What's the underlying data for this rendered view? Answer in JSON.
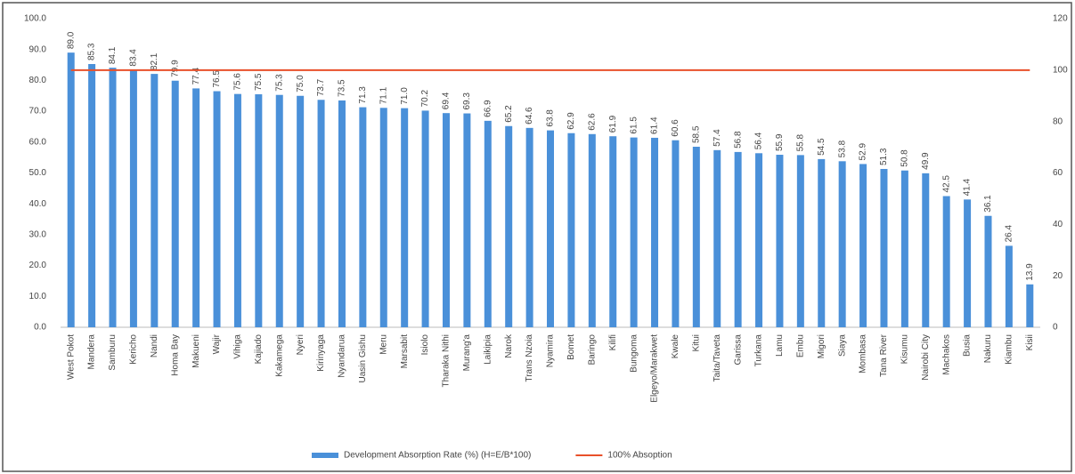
{
  "chart_data": {
    "type": "bar",
    "categories": [
      "West Pokot",
      "Mandera",
      "Samburu",
      "Kericho",
      "Nandi",
      "Homa Bay",
      "Makueni",
      "Wajir",
      "Vihiga",
      "Kajiado",
      "Kakamega",
      "Nyeri",
      "Kirinyaga",
      "Nyandarua",
      "Uasin Gishu",
      "Meru",
      "Marsabit",
      "Isiolo",
      "Tharaka Nithi",
      "Murang'a",
      "Laikipia",
      "Narok",
      "Trans Nzoia",
      "Nyamira",
      "Bomet",
      "Baringo",
      "Kilifi",
      "Bungoma",
      "Elgeyo/Marakwet",
      "Kwale",
      "Kitui",
      "Taita/Taveta",
      "Garissa",
      "Turkana",
      "Lamu",
      "Embu",
      "Migori",
      "Siaya",
      "Mombasa",
      "Tana River",
      "Kisumu",
      "Nairobi City",
      "Machakos",
      "Busia",
      "Nakuru",
      "Kiambu",
      "Kisii"
    ],
    "series": [
      {
        "name": "Development Absorption Rate (%) (H=E/B*100)",
        "color": "#4a90d9",
        "values": [
          89.0,
          85.3,
          84.1,
          83.4,
          82.1,
          79.9,
          77.4,
          76.5,
          75.6,
          75.5,
          75.3,
          75.0,
          73.7,
          73.5,
          71.3,
          71.1,
          71.0,
          70.2,
          69.4,
          69.3,
          66.9,
          65.2,
          64.6,
          63.8,
          62.9,
          62.6,
          61.9,
          61.5,
          61.4,
          60.6,
          58.5,
          57.4,
          56.8,
          56.4,
          55.9,
          55.8,
          54.5,
          53.8,
          52.9,
          51.3,
          50.8,
          49.9,
          42.5,
          41.4,
          36.1,
          26.4,
          13.9
        ],
        "value_labels": [
          "89.0",
          "85.3",
          "84.1",
          "83.4",
          "82.1",
          "79.9",
          "77.4",
          "76.5",
          "75.6",
          "75.5",
          "75.3",
          "75.0",
          "73.7",
          "73.5",
          "71.3",
          "71.1",
          "71.0",
          "70.2",
          "69.4",
          "69.3",
          "66.9",
          "65.2",
          "64.6",
          "63.8",
          "62.9",
          "62.6",
          "61.9",
          "61.5",
          "61.4",
          "60.6",
          "58.5",
          "57.4",
          "56.8",
          "56.4",
          "55.9",
          "55.8",
          "54.5",
          "53.8",
          "52.9",
          "51.3",
          "50.8",
          "49.9",
          "42.5",
          "41.4",
          "36.1",
          "26.4",
          "13.9"
        ]
      },
      {
        "name": "100% Absoption",
        "color": "#e8502a",
        "axis": "y2",
        "line": true,
        "values": [
          100,
          100,
          100,
          100,
          100,
          100,
          100,
          100,
          100,
          100,
          100,
          100,
          100,
          100,
          100,
          100,
          100,
          100,
          100,
          100,
          100,
          100,
          100,
          100,
          100,
          100,
          100,
          100,
          100,
          100,
          100,
          100,
          100,
          100,
          100,
          100,
          100,
          100,
          100,
          100,
          100,
          100,
          100,
          100,
          100,
          100,
          100
        ]
      }
    ],
    "ylim": [
      0,
      100
    ],
    "yticks": [
      {
        "value": 0,
        "label": "0.0"
      },
      {
        "value": 10,
        "label": "10.0"
      },
      {
        "value": 20,
        "label": "20.0"
      },
      {
        "value": 30,
        "label": "30.0"
      },
      {
        "value": 40,
        "label": "40.0"
      },
      {
        "value": 50,
        "label": "50.0"
      },
      {
        "value": 60,
        "label": "60.0"
      },
      {
        "value": 70,
        "label": "70.0"
      },
      {
        "value": 80,
        "label": "80.0"
      },
      {
        "value": 90,
        "label": "90.0"
      },
      {
        "value": 100,
        "label": "100.0"
      }
    ],
    "y2lim": [
      0,
      120
    ],
    "y2ticks": [
      0,
      20,
      40,
      60,
      80,
      100,
      120
    ],
    "legend": "bottom"
  }
}
